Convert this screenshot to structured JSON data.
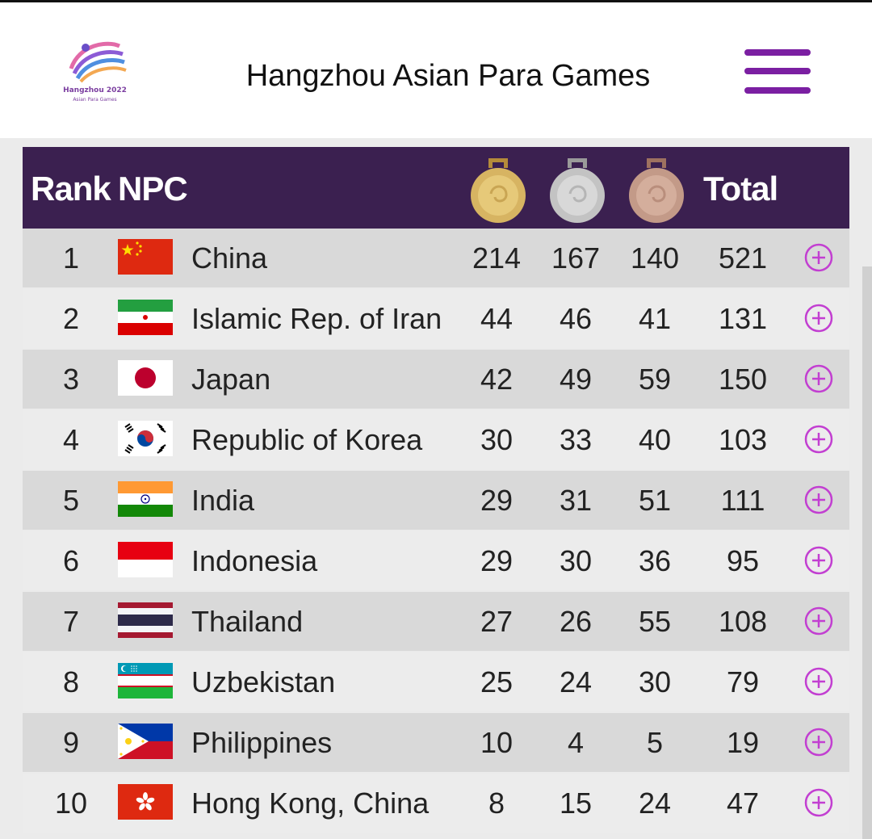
{
  "header": {
    "logo_name": "Hangzhou 2022",
    "logo_sub": "Asian Para Games",
    "title": "Hangzhou Asian Para Games"
  },
  "table": {
    "col_rank": "Rank",
    "col_npc": "NPC",
    "col_total": "Total",
    "medal_icons": [
      "gold-medal-icon",
      "silver-medal-icon",
      "bronze-medal-icon"
    ],
    "rows": [
      {
        "rank": "1",
        "npc": "China",
        "gold": "214",
        "silver": "167",
        "bronze": "140",
        "total": "521",
        "flag": "china-flag-icon"
      },
      {
        "rank": "2",
        "npc": "Islamic Rep. of Iran",
        "gold": "44",
        "silver": "46",
        "bronze": "41",
        "total": "131",
        "flag": "iran-flag-icon"
      },
      {
        "rank": "3",
        "npc": "Japan",
        "gold": "42",
        "silver": "49",
        "bronze": "59",
        "total": "150",
        "flag": "japan-flag-icon"
      },
      {
        "rank": "4",
        "npc": "Republic of Korea",
        "gold": "30",
        "silver": "33",
        "bronze": "40",
        "total": "103",
        "flag": "korea-flag-icon"
      },
      {
        "rank": "5",
        "npc": "India",
        "gold": "29",
        "silver": "31",
        "bronze": "51",
        "total": "111",
        "flag": "india-flag-icon"
      },
      {
        "rank": "6",
        "npc": "Indonesia",
        "gold": "29",
        "silver": "30",
        "bronze": "36",
        "total": "95",
        "flag": "indonesia-flag-icon"
      },
      {
        "rank": "7",
        "npc": "Thailand",
        "gold": "27",
        "silver": "26",
        "bronze": "55",
        "total": "108",
        "flag": "thailand-flag-icon"
      },
      {
        "rank": "8",
        "npc": "Uzbekistan",
        "gold": "25",
        "silver": "24",
        "bronze": "30",
        "total": "79",
        "flag": "uzbekistan-flag-icon"
      },
      {
        "rank": "9",
        "npc": "Philippines",
        "gold": "10",
        "silver": "4",
        "bronze": "5",
        "total": "19",
        "flag": "philippines-flag-icon"
      },
      {
        "rank": "10",
        "npc": "Hong Kong, China",
        "gold": "8",
        "silver": "15",
        "bronze": "24",
        "total": "47",
        "flag": "hong-kong-flag-icon"
      }
    ]
  },
  "colors": {
    "header_bg": "#3b2050",
    "menu_accent": "#7b1fa2",
    "expand_icon": "#c23fd1"
  }
}
